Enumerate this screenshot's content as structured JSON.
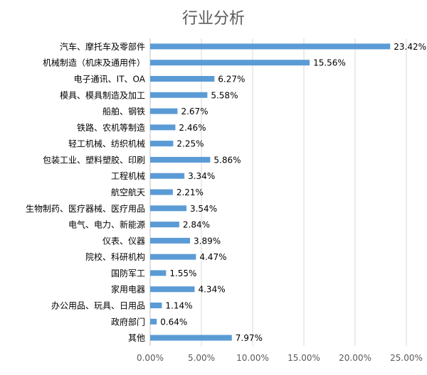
{
  "chart_data": {
    "type": "bar",
    "orientation": "horizontal",
    "title": "行业分析",
    "xlabel": "",
    "ylabel": "",
    "categories": [
      "汽车、摩托车及零部件",
      "机械制造（机床及通用件）",
      "电子通讯、IT、OA",
      "模具、模具制造及加工",
      "船舶、钢铁",
      "铁路、农机等制造",
      "轻工机械、纺织机械",
      "包装工业、塑料塑胶、印刷",
      "工程机械",
      "航空航天",
      "生物制药、医疗器械、医疗用品",
      "电气、电力、新能源",
      "仪表、仪器",
      "院校、科研机构",
      "国防军工",
      "家用电器",
      "办公用品、玩具、日用品",
      "政府部门",
      "其他"
    ],
    "values": [
      23.42,
      15.56,
      6.27,
      5.58,
      2.67,
      2.46,
      2.25,
      5.86,
      3.34,
      2.21,
      3.54,
      2.84,
      3.89,
      4.47,
      1.55,
      4.34,
      1.14,
      0.64,
      7.97
    ],
    "data_labels": [
      "23.42%",
      "15.56%",
      "6.27%",
      "5.58%",
      "2.67%",
      "2.46%",
      "2.25%",
      "5.86%",
      "3.34%",
      "2.21%",
      "3.54%",
      "2.84%",
      "3.89%",
      "4.47%",
      "1.55%",
      "4.34%",
      "1.14%",
      "0.64%",
      "7.97%"
    ],
    "xlim": [
      0,
      25
    ],
    "xticks": [
      0,
      5,
      10,
      15,
      20,
      25
    ],
    "xtick_labels": [
      "0.00%",
      "5.00%",
      "10.00%",
      "15.00%",
      "20.00%",
      "25.00%"
    ],
    "grid": true,
    "legend": "none",
    "colors": {
      "bar": "#5b9bd5",
      "grid": "#d9d9d9",
      "text": "#000000",
      "title": "#595959",
      "tick": "#595959"
    }
  }
}
